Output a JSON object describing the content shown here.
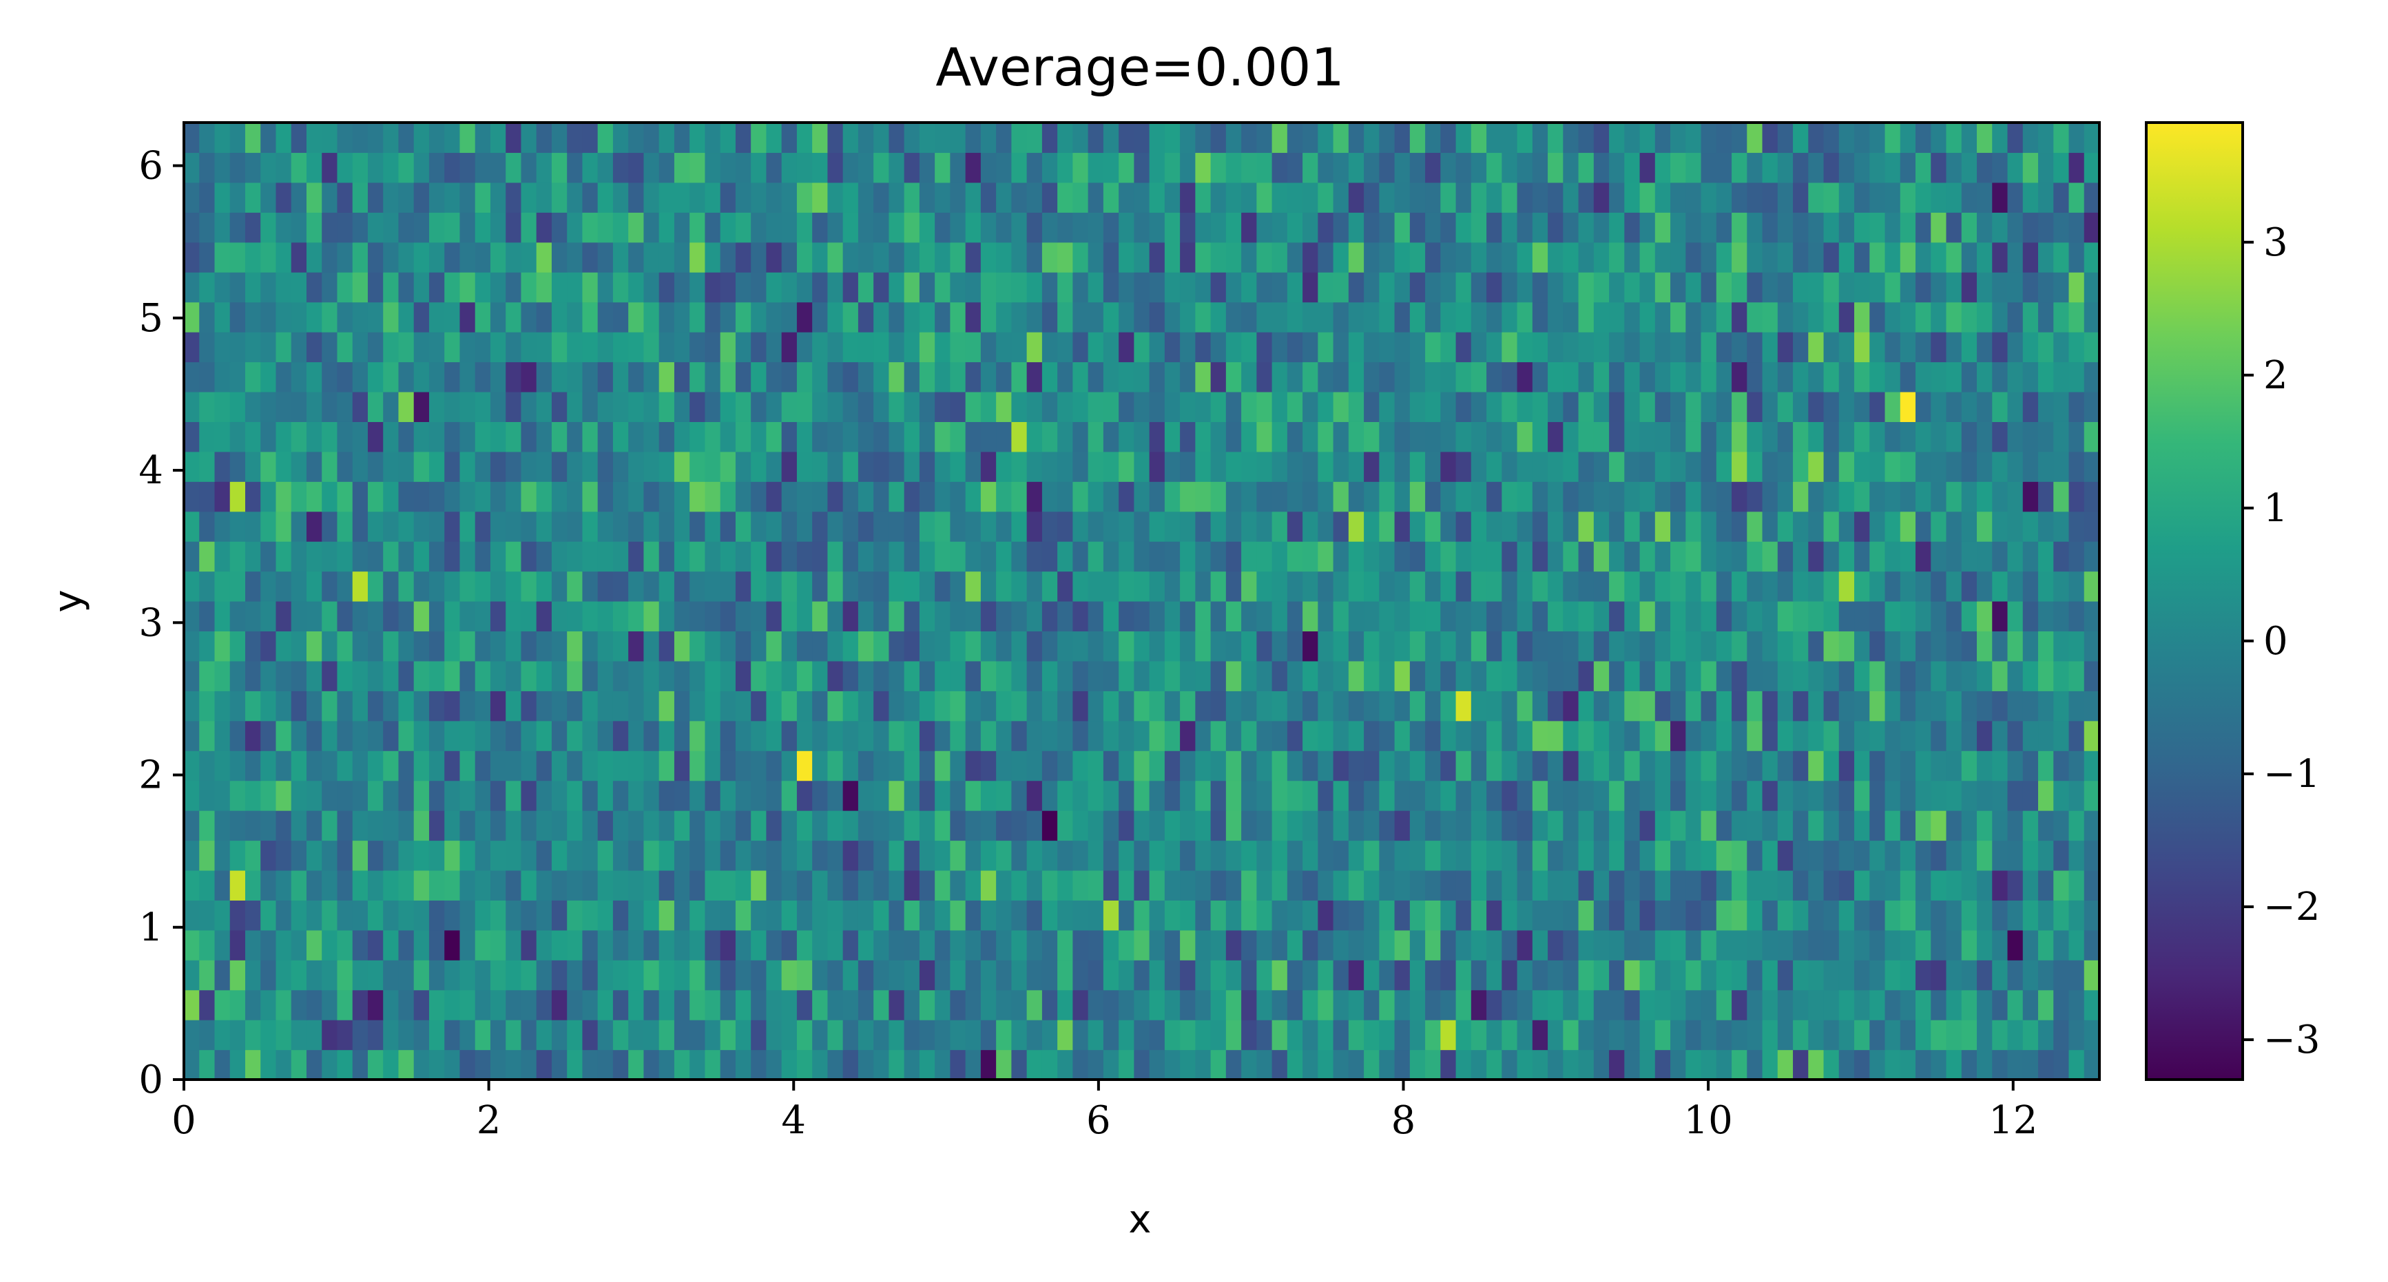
{
  "chart_data": {
    "type": "heatmap",
    "title": "Average=0.001",
    "xlabel": "x",
    "ylabel": "y",
    "xlim": [
      0,
      12.566
    ],
    "ylim": [
      0,
      6.283
    ],
    "x_ticks": [
      0,
      2,
      4,
      6,
      8,
      10,
      12
    ],
    "x_tick_labels": [
      "0",
      "2",
      "4",
      "6",
      "8",
      "10",
      "12"
    ],
    "y_ticks": [
      0,
      1,
      2,
      3,
      4,
      5,
      6
    ],
    "y_tick_labels": [
      "0",
      "1",
      "2",
      "3",
      "4",
      "5",
      "6"
    ],
    "grid": {
      "columns": 125,
      "rows": 32,
      "seed": 7
    },
    "colorbar": {
      "colormap": "viridis",
      "vmin": -3.3,
      "vmax": 3.9,
      "ticks": [
        -3,
        -2,
        -1,
        0,
        1,
        2,
        3
      ],
      "tick_labels": [
        "−3",
        "−2",
        "−1",
        "0",
        "1",
        "2",
        "3"
      ],
      "stops": [
        "#440154",
        "#482878",
        "#3e4989",
        "#31688e",
        "#26828e",
        "#1f9e89",
        "#35b779",
        "#6ece58",
        "#b5de2b",
        "#fde725"
      ]
    },
    "highlights": [
      {
        "x": 4.08,
        "y": 2.06,
        "value": 3.85
      },
      {
        "x": 7.4,
        "y": 2.85,
        "value": -3.1
      },
      {
        "x": 12.1,
        "y": 3.85,
        "value": -3.0
      },
      {
        "x": 11.9,
        "y": 3.05,
        "value": -3.0
      },
      {
        "x": 1.23,
        "y": 0.5,
        "value": -2.8
      },
      {
        "x": 6.05,
        "y": 1.06,
        "value": 2.9
      },
      {
        "x": 10.95,
        "y": 3.25,
        "value": 2.9
      },
      {
        "x": 5.45,
        "y": 4.25,
        "value": 3.0
      },
      {
        "x": 11.9,
        "y": 5.8,
        "value": -3.0
      },
      {
        "x": 4.05,
        "y": 5.0,
        "value": -2.8
      }
    ]
  }
}
